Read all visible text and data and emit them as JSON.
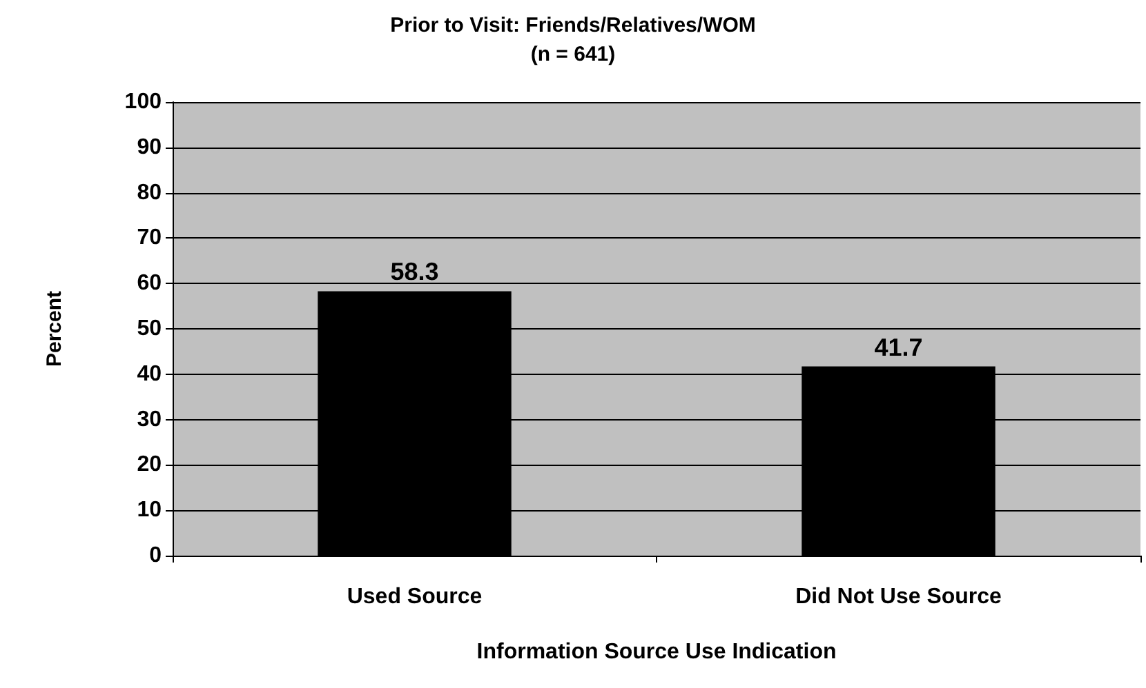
{
  "chart_data": {
    "type": "bar",
    "title": "Prior to Visit: Friends/Relatives/WOM",
    "subtitle": "(n = 641)",
    "xlabel": "Information Source Use Indication",
    "ylabel": "Percent",
    "categories": [
      "Used Source",
      "Did Not Use Source"
    ],
    "values": [
      58.3,
      41.7
    ],
    "color": "#000000",
    "ylim": [
      0,
      100
    ],
    "yticks": [
      0,
      10,
      20,
      30,
      40,
      50,
      60,
      70,
      80,
      90,
      100
    ],
    "grid": "y",
    "data_labels": true
  }
}
